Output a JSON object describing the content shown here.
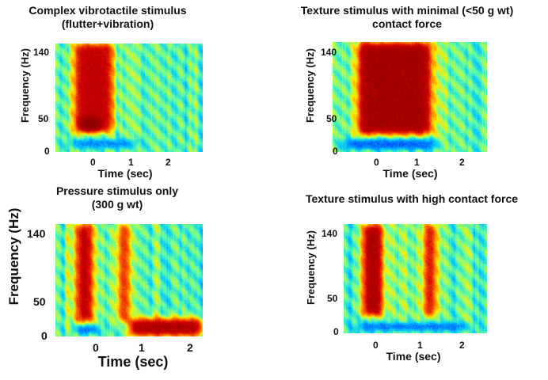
{
  "chart_data": [
    {
      "type": "heatmap",
      "title_lines": [
        "Complex vibrotactile stimulus",
        "(flutter+vibration)"
      ],
      "xlabel": "Time (sec)",
      "ylabel": "Frequency (Hz)",
      "xlim": [
        -0.5,
        2.6
      ],
      "ylim": [
        0,
        160
      ],
      "x_ticks": [
        0,
        1,
        2
      ],
      "y_ticks": [
        0,
        50,
        140
      ],
      "x_tick_labels": [
        "0",
        "1",
        "2"
      ],
      "y_tick_labels": [
        "0",
        "50",
        "140"
      ],
      "colormap": [
        "#00008f",
        "#0050ff",
        "#00c8ff",
        "#64ffa0",
        "#fff000",
        "#ff6a00",
        "#d40000",
        "#820000"
      ],
      "high_power_regions": [
        {
          "t_start": -0.1,
          "t_end": 0.7,
          "f_low": 30,
          "f_high": 160,
          "level": 0.9
        },
        {
          "t_start": 0.0,
          "t_end": 0.45,
          "f_low": 30,
          "f_high": 50,
          "level": 1.0
        }
      ],
      "low_power_regions": [
        {
          "t_start": -0.2,
          "t_end": 1.2,
          "f_low": 5,
          "f_high": 18,
          "level": 0.15
        }
      ]
    },
    {
      "type": "heatmap",
      "title_lines": [
        "Texture stimulus with minimal (<50 g wt)",
        "contact force"
      ],
      "xlabel": "Time (sec)",
      "ylabel": "Frequency (Hz)",
      "xlim": [
        -0.5,
        2.6
      ],
      "ylim": [
        0,
        160
      ],
      "x_ticks": [
        0,
        1,
        2
      ],
      "y_ticks": [
        0,
        50,
        140
      ],
      "x_tick_labels": [
        "0",
        "1",
        "2"
      ],
      "y_tick_labels": [
        "0",
        "50",
        "140"
      ],
      "colormap": [
        "#00008f",
        "#0050ff",
        "#00c8ff",
        "#64ffa0",
        "#fff000",
        "#ff6a00",
        "#d40000",
        "#820000"
      ],
      "high_power_regions": [
        {
          "t_start": 0.0,
          "t_end": 1.5,
          "f_low": 25,
          "f_high": 160,
          "level": 0.95
        }
      ],
      "low_power_regions": [
        {
          "t_start": -0.3,
          "t_end": 1.6,
          "f_low": 3,
          "f_high": 18,
          "level": 0.1
        }
      ]
    },
    {
      "type": "heatmap",
      "title_lines": [
        "Pressure stimulus only",
        "(300 g wt)"
      ],
      "xlabel": "Time (sec)",
      "ylabel": "Frequency (Hz)",
      "xlim": [
        -0.5,
        2.3
      ],
      "ylim": [
        0,
        160
      ],
      "x_ticks": [
        0,
        1,
        2
      ],
      "y_ticks": [
        0,
        50,
        140
      ],
      "x_tick_labels": [
        "0",
        "1",
        "2"
      ],
      "y_tick_labels": [
        "0",
        "50",
        "140"
      ],
      "colormap": [
        "#00008f",
        "#0050ff",
        "#00c8ff",
        "#64ffa0",
        "#fff000",
        "#ff6a00",
        "#d40000",
        "#820000"
      ],
      "high_power_regions": [
        {
          "t_start": -0.1,
          "t_end": 0.2,
          "f_low": 20,
          "f_high": 160,
          "level": 0.95
        },
        {
          "t_start": 0.7,
          "t_end": 0.9,
          "f_low": 20,
          "f_high": 160,
          "level": 0.9
        },
        {
          "t_start": 0.9,
          "t_end": 2.3,
          "f_low": 0,
          "f_high": 25,
          "level": 0.95
        }
      ],
      "low_power_regions": [
        {
          "t_start": -0.1,
          "t_end": 0.3,
          "f_low": 3,
          "f_high": 15,
          "level": 0.05
        }
      ]
    },
    {
      "type": "heatmap",
      "title_lines": [
        "Texture stimulus with high contact force"
      ],
      "xlabel": "Time (sec)",
      "ylabel": "Frequency (Hz)",
      "xlim": [
        -0.5,
        2.6
      ],
      "ylim": [
        0,
        160
      ],
      "x_ticks": [
        0,
        1,
        2
      ],
      "y_ticks": [
        0,
        50,
        140
      ],
      "x_tick_labels": [
        "0",
        "1",
        "2"
      ],
      "y_tick_labels": [
        "0",
        "50",
        "140"
      ],
      "colormap": [
        "#00008f",
        "#0050ff",
        "#00c8ff",
        "#64ffa0",
        "#fff000",
        "#ff6a00",
        "#d40000",
        "#820000"
      ],
      "high_power_regions": [
        {
          "t_start": -0.1,
          "t_end": 0.35,
          "f_low": 25,
          "f_high": 160,
          "level": 0.95
        },
        {
          "t_start": 1.25,
          "t_end": 1.5,
          "f_low": 25,
          "f_high": 160,
          "level": 0.9
        }
      ],
      "low_power_regions": [
        {
          "t_start": -0.2,
          "t_end": 2.2,
          "f_low": 3,
          "f_high": 15,
          "level": 0.12
        }
      ]
    }
  ]
}
